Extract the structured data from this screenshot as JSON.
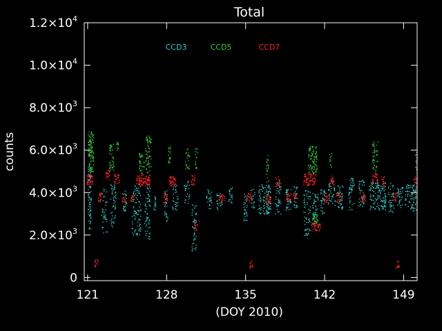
{
  "chart_data": {
    "type": "scatter",
    "title": "Total",
    "xlabel": "(DOY 2010)",
    "ylabel": "counts",
    "xlim": [
      120.7,
      150.2
    ],
    "ylim": [
      -150,
      12000
    ],
    "x_ticks": [
      {
        "value": 121,
        "label": "121"
      },
      {
        "value": 128,
        "label": "128"
      },
      {
        "value": 135,
        "label": "135"
      },
      {
        "value": 142,
        "label": "142"
      },
      {
        "value": 149,
        "label": "149"
      }
    ],
    "y_ticks": [
      {
        "value": 0,
        "mantissa": "0",
        "exp": ""
      },
      {
        "value": 2000,
        "mantissa": "2.0×10",
        "exp": "3"
      },
      {
        "value": 4000,
        "mantissa": "4.0×10",
        "exp": "3"
      },
      {
        "value": 6000,
        "mantissa": "6.0×10",
        "exp": "3"
      },
      {
        "value": 8000,
        "mantissa": "8.0×10",
        "exp": "3"
      },
      {
        "value": 10000,
        "mantissa": "1.0×10",
        "exp": "4"
      },
      {
        "value": 12000,
        "mantissa": "1.2×10",
        "exp": "4"
      }
    ],
    "grid": false,
    "legend_position": "top-left",
    "background": "#000000",
    "axis_color": "#ffffff",
    "series": [
      {
        "name": "CCD3",
        "color": "#33cccc",
        "clusters": [
          {
            "x0": 121.0,
            "x1": 121.3,
            "ymin": 2300,
            "ymax": 5200,
            "n": 70
          },
          {
            "x0": 122.2,
            "x1": 122.7,
            "ymin": 2100,
            "ymax": 4200,
            "n": 40
          },
          {
            "x0": 123.0,
            "x1": 123.5,
            "ymin": 2400,
            "ymax": 4400,
            "n": 50
          },
          {
            "x0": 124.1,
            "x1": 124.4,
            "ymin": 3100,
            "ymax": 4100,
            "n": 25
          },
          {
            "x0": 124.9,
            "x1": 125.7,
            "ymin": 2000,
            "ymax": 4400,
            "n": 90
          },
          {
            "x0": 126.0,
            "x1": 126.5,
            "ymin": 1800,
            "ymax": 4300,
            "n": 60
          },
          {
            "x0": 126.8,
            "x1": 127.0,
            "ymin": 3200,
            "ymax": 3900,
            "n": 15
          },
          {
            "x0": 127.8,
            "x1": 128.1,
            "ymin": 2600,
            "ymax": 4200,
            "n": 30
          },
          {
            "x0": 128.5,
            "x1": 129.0,
            "ymin": 3200,
            "ymax": 4500,
            "n": 30
          },
          {
            "x0": 129.5,
            "x1": 130.0,
            "ymin": 3500,
            "ymax": 4600,
            "n": 25
          },
          {
            "x0": 130.2,
            "x1": 130.6,
            "ymin": 1200,
            "ymax": 3500,
            "n": 45
          },
          {
            "x0": 131.5,
            "x1": 132.0,
            "ymin": 3200,
            "ymax": 4200,
            "n": 25
          },
          {
            "x0": 132.4,
            "x1": 132.9,
            "ymin": 3200,
            "ymax": 4000,
            "n": 25
          },
          {
            "x0": 133.4,
            "x1": 133.8,
            "ymin": 3500,
            "ymax": 4300,
            "n": 20
          },
          {
            "x0": 134.8,
            "x1": 135.1,
            "ymin": 2600,
            "ymax": 4000,
            "n": 30
          },
          {
            "x0": 135.4,
            "x1": 135.8,
            "ymin": 3300,
            "ymax": 4200,
            "n": 20
          },
          {
            "x0": 136.1,
            "x1": 137.2,
            "ymin": 3000,
            "ymax": 4400,
            "n": 110
          },
          {
            "x0": 137.6,
            "x1": 138.1,
            "ymin": 3000,
            "ymax": 4600,
            "n": 40
          },
          {
            "x0": 138.5,
            "x1": 139.0,
            "ymin": 3200,
            "ymax": 4300,
            "n": 35
          },
          {
            "x0": 139.2,
            "x1": 139.6,
            "ymin": 3300,
            "ymax": 4300,
            "n": 25
          },
          {
            "x0": 140.1,
            "x1": 140.7,
            "ymin": 2000,
            "ymax": 4200,
            "n": 60
          },
          {
            "x0": 140.9,
            "x1": 141.4,
            "ymin": 2600,
            "ymax": 4000,
            "n": 40
          },
          {
            "x0": 141.6,
            "x1": 142.0,
            "ymin": 3000,
            "ymax": 4300,
            "n": 35
          },
          {
            "x0": 142.3,
            "x1": 142.9,
            "ymin": 3300,
            "ymax": 4600,
            "n": 40
          },
          {
            "x0": 143.1,
            "x1": 143.6,
            "ymin": 3200,
            "ymax": 4500,
            "n": 40
          },
          {
            "x0": 144.1,
            "x1": 144.6,
            "ymin": 3200,
            "ymax": 4700,
            "n": 45
          },
          {
            "x0": 145.0,
            "x1": 145.5,
            "ymin": 3300,
            "ymax": 4600,
            "n": 40
          },
          {
            "x0": 145.9,
            "x1": 147.4,
            "ymin": 3200,
            "ymax": 4500,
            "n": 130
          },
          {
            "x0": 147.6,
            "x1": 148.1,
            "ymin": 3000,
            "ymax": 4500,
            "n": 40
          },
          {
            "x0": 148.4,
            "x1": 148.9,
            "ymin": 3300,
            "ymax": 4300,
            "n": 35
          },
          {
            "x0": 149.1,
            "x1": 150.2,
            "ymin": 3100,
            "ymax": 4400,
            "n": 90
          }
        ]
      },
      {
        "name": "CCD5",
        "color": "#33cc33",
        "clusters": [
          {
            "x0": 121.0,
            "x1": 121.5,
            "ymin": 5000,
            "ymax": 6900,
            "n": 110
          },
          {
            "x0": 122.9,
            "x1": 123.3,
            "ymin": 5000,
            "ymax": 6300,
            "n": 40
          },
          {
            "x0": 123.5,
            "x1": 123.7,
            "ymin": 6000,
            "ymax": 6400,
            "n": 10
          },
          {
            "x0": 125.5,
            "x1": 126.0,
            "ymin": 4900,
            "ymax": 5900,
            "n": 35
          },
          {
            "x0": 126.1,
            "x1": 126.6,
            "ymin": 4900,
            "ymax": 6700,
            "n": 60
          },
          {
            "x0": 128.1,
            "x1": 128.3,
            "ymin": 5400,
            "ymax": 6200,
            "n": 20
          },
          {
            "x0": 129.6,
            "x1": 130.0,
            "ymin": 5000,
            "ymax": 6100,
            "n": 25
          },
          {
            "x0": 130.5,
            "x1": 130.7,
            "ymin": 5100,
            "ymax": 6100,
            "n": 15
          },
          {
            "x0": 136.8,
            "x1": 137.0,
            "ymin": 4500,
            "ymax": 5800,
            "n": 20
          },
          {
            "x0": 140.5,
            "x1": 141.3,
            "ymin": 4900,
            "ymax": 6200,
            "n": 90
          },
          {
            "x0": 140.9,
            "x1": 141.4,
            "ymin": 2500,
            "ymax": 3000,
            "n": 30
          },
          {
            "x0": 142.4,
            "x1": 142.6,
            "ymin": 5200,
            "ymax": 5900,
            "n": 10
          },
          {
            "x0": 146.2,
            "x1": 146.7,
            "ymin": 4900,
            "ymax": 6500,
            "n": 45
          },
          {
            "x0": 150.0,
            "x1": 150.2,
            "ymin": 5000,
            "ymax": 6000,
            "n": 15
          }
        ]
      },
      {
        "name": "CCD7",
        "color": "#ff2222",
        "clusters": [
          {
            "x0": 120.9,
            "x1": 121.4,
            "ymin": 4400,
            "ymax": 4900,
            "n": 40
          },
          {
            "x0": 121.9,
            "x1": 122.2,
            "ymin": 3550,
            "ymax": 4050,
            "n": 20
          },
          {
            "x0": 122.6,
            "x1": 122.9,
            "ymin": 4600,
            "ymax": 5100,
            "n": 20
          },
          {
            "x0": 123.3,
            "x1": 123.8,
            "ymin": 4450,
            "ymax": 4900,
            "n": 25
          },
          {
            "x0": 124.0,
            "x1": 124.3,
            "ymin": 3550,
            "ymax": 4000,
            "n": 15
          },
          {
            "x0": 124.8,
            "x1": 125.1,
            "ymin": 3550,
            "ymax": 4000,
            "n": 15
          },
          {
            "x0": 125.3,
            "x1": 126.5,
            "ymin": 4350,
            "ymax": 4850,
            "n": 90
          },
          {
            "x0": 127.7,
            "x1": 128.1,
            "ymin": 3550,
            "ymax": 4000,
            "n": 20
          },
          {
            "x0": 128.2,
            "x1": 128.8,
            "ymin": 4300,
            "ymax": 4800,
            "n": 40
          },
          {
            "x0": 130.1,
            "x1": 130.5,
            "ymin": 4350,
            "ymax": 4850,
            "n": 20
          },
          {
            "x0": 130.4,
            "x1": 130.7,
            "ymin": 2200,
            "ymax": 2700,
            "n": 15
          },
          {
            "x0": 132.6,
            "x1": 133.1,
            "ymin": 3500,
            "ymax": 3950,
            "n": 20
          },
          {
            "x0": 135.0,
            "x1": 135.5,
            "ymin": 3550,
            "ymax": 4000,
            "n": 20
          },
          {
            "x0": 136.7,
            "x1": 137.2,
            "ymin": 3500,
            "ymax": 4000,
            "n": 20
          },
          {
            "x0": 137.6,
            "x1": 138.0,
            "ymin": 4300,
            "ymax": 4800,
            "n": 20
          },
          {
            "x0": 138.6,
            "x1": 139.0,
            "ymin": 3550,
            "ymax": 4000,
            "n": 20
          },
          {
            "x0": 139.2,
            "x1": 139.5,
            "ymin": 3550,
            "ymax": 4000,
            "n": 15
          },
          {
            "x0": 140.1,
            "x1": 141.2,
            "ymin": 4350,
            "ymax": 4900,
            "n": 70
          },
          {
            "x0": 140.8,
            "x1": 141.6,
            "ymin": 2200,
            "ymax": 2600,
            "n": 40
          },
          {
            "x0": 141.9,
            "x1": 142.3,
            "ymin": 3550,
            "ymax": 4000,
            "n": 20
          },
          {
            "x0": 142.4,
            "x1": 142.8,
            "ymin": 4300,
            "ymax": 4800,
            "n": 20
          },
          {
            "x0": 143.0,
            "x1": 143.4,
            "ymin": 3550,
            "ymax": 4000,
            "n": 20
          },
          {
            "x0": 145.2,
            "x1": 145.6,
            "ymin": 3550,
            "ymax": 4000,
            "n": 20
          },
          {
            "x0": 146.2,
            "x1": 146.7,
            "ymin": 4400,
            "ymax": 4900,
            "n": 25
          },
          {
            "x0": 147.0,
            "x1": 147.4,
            "ymin": 4300,
            "ymax": 4800,
            "n": 20
          },
          {
            "x0": 148.0,
            "x1": 148.4,
            "ymin": 3600,
            "ymax": 4050,
            "n": 20
          },
          {
            "x0": 149.8,
            "x1": 150.2,
            "ymin": 4350,
            "ymax": 4800,
            "n": 15
          },
          {
            "x0": 121.6,
            "x1": 121.9,
            "ymin": 500,
            "ymax": 900,
            "n": 15
          },
          {
            "x0": 135.3,
            "x1": 135.6,
            "ymin": 450,
            "ymax": 800,
            "n": 12
          },
          {
            "x0": 148.3,
            "x1": 148.6,
            "ymin": 450,
            "ymax": 800,
            "n": 12
          }
        ]
      }
    ]
  }
}
